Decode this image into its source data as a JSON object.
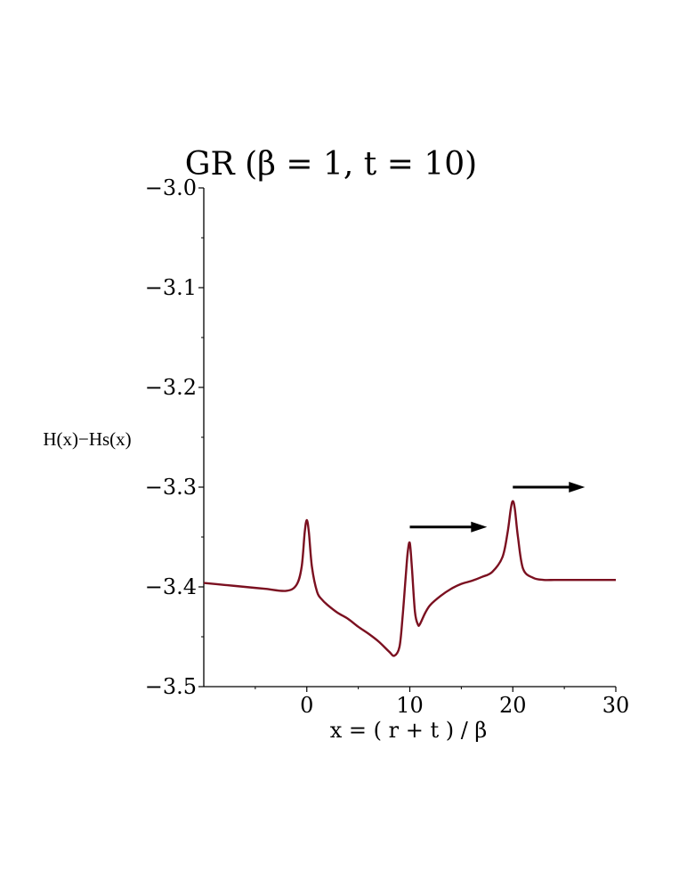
{
  "chart_data": {
    "type": "line",
    "title": "GR  (β  = 1,  t = 10)",
    "xlabel": "x = ( r + t ) / β",
    "ylabel": "H(x)−Hs(x)",
    "xlim": [
      -10,
      30
    ],
    "ylim": [
      -3.5,
      -3.0
    ],
    "grid": false,
    "x_ticks": [
      0,
      10,
      20,
      30
    ],
    "x_tick_labels": [
      "0",
      "10",
      "20",
      "30"
    ],
    "y_ticks": [
      -3.5,
      -3.4,
      -3.3,
      -3.2,
      -3.1,
      -3.0
    ],
    "y_tick_labels": [
      "−3.5",
      "−3.4",
      "−3.3",
      "−3.2",
      "−3.1",
      "−3.0"
    ],
    "series": [
      {
        "color": "#7b1020",
        "x": [
          -10,
          -8,
          -6,
          -4,
          -2,
          -1,
          -0.5,
          -0.2,
          0,
          0.2,
          0.5,
          1,
          1.5,
          2,
          3,
          4,
          5,
          6,
          7,
          8,
          8.5,
          9,
          9.3,
          9.6,
          9.8,
          10,
          10.2,
          10.5,
          10.8,
          11,
          11.5,
          12,
          13,
          14,
          15,
          16,
          17,
          18,
          19,
          19.5,
          19.8,
          20,
          20.2,
          20.5,
          21,
          22,
          23,
          24,
          25,
          26,
          27,
          28,
          29,
          30
        ],
        "values": [
          -3.396,
          -3.398,
          -3.4,
          -3.402,
          -3.404,
          -3.398,
          -3.38,
          -3.345,
          -3.333,
          -3.345,
          -3.38,
          -3.405,
          -3.413,
          -3.418,
          -3.426,
          -3.432,
          -3.44,
          -3.447,
          -3.455,
          -3.465,
          -3.469,
          -3.46,
          -3.43,
          -3.39,
          -3.365,
          -3.356,
          -3.38,
          -3.425,
          -3.438,
          -3.437,
          -3.426,
          -3.418,
          -3.409,
          -3.402,
          -3.397,
          -3.394,
          -3.39,
          -3.385,
          -3.37,
          -3.345,
          -3.322,
          -3.314,
          -3.322,
          -3.35,
          -3.382,
          -3.391,
          -3.393,
          -3.393,
          -3.393,
          -3.393,
          -3.393,
          -3.393,
          -3.393,
          -3.393
        ]
      }
    ],
    "annotations": [
      {
        "type": "arrow",
        "x_start": 10,
        "x_end": 17.5,
        "y": -3.34,
        "color": "#000000"
      },
      {
        "type": "arrow",
        "x_start": 20,
        "x_end": 27,
        "y": -3.3,
        "color": "#000000"
      }
    ]
  }
}
